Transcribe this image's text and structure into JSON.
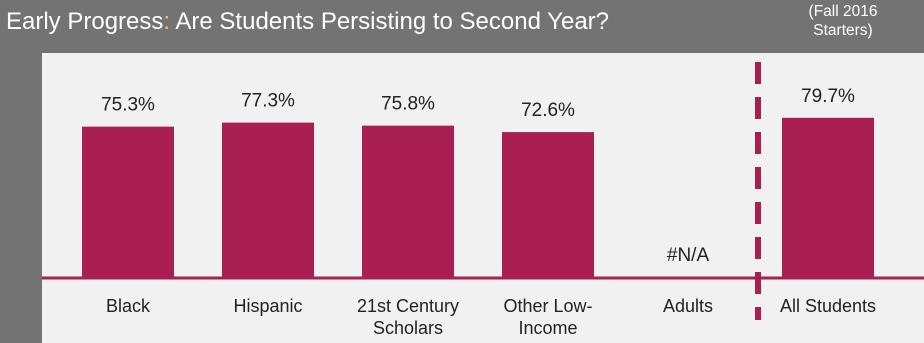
{
  "header": {
    "title_main": "Early Progress",
    "title_colon": ":",
    "title_rest": " Are Students Persisting to Second Year?",
    "note_line1": "(Fall 2016",
    "note_line2": "Starters)"
  },
  "colors": {
    "background": "#737373",
    "panel": "#f1f1f1",
    "bar": "#a91f51",
    "axis": "#a91f51",
    "title_accent": "#f2c94c",
    "text": "#222222"
  },
  "chart_data": {
    "type": "bar",
    "categories": [
      [
        "Black"
      ],
      [
        "Hispanic"
      ],
      [
        "21st Century",
        "Scholars"
      ],
      [
        "Other Low-",
        "Income"
      ],
      [
        "Adults"
      ],
      [
        "All Students"
      ]
    ],
    "values": [
      75.3,
      77.3,
      75.8,
      72.6,
      null,
      79.7
    ],
    "data_labels": [
      "75.3%",
      "77.3%",
      "75.8%",
      "72.6%",
      "#N/A",
      "79.7%"
    ],
    "ylim": [
      0,
      100
    ],
    "unit": "%",
    "grid": false,
    "separator": "dashed vertical line before All Students"
  }
}
